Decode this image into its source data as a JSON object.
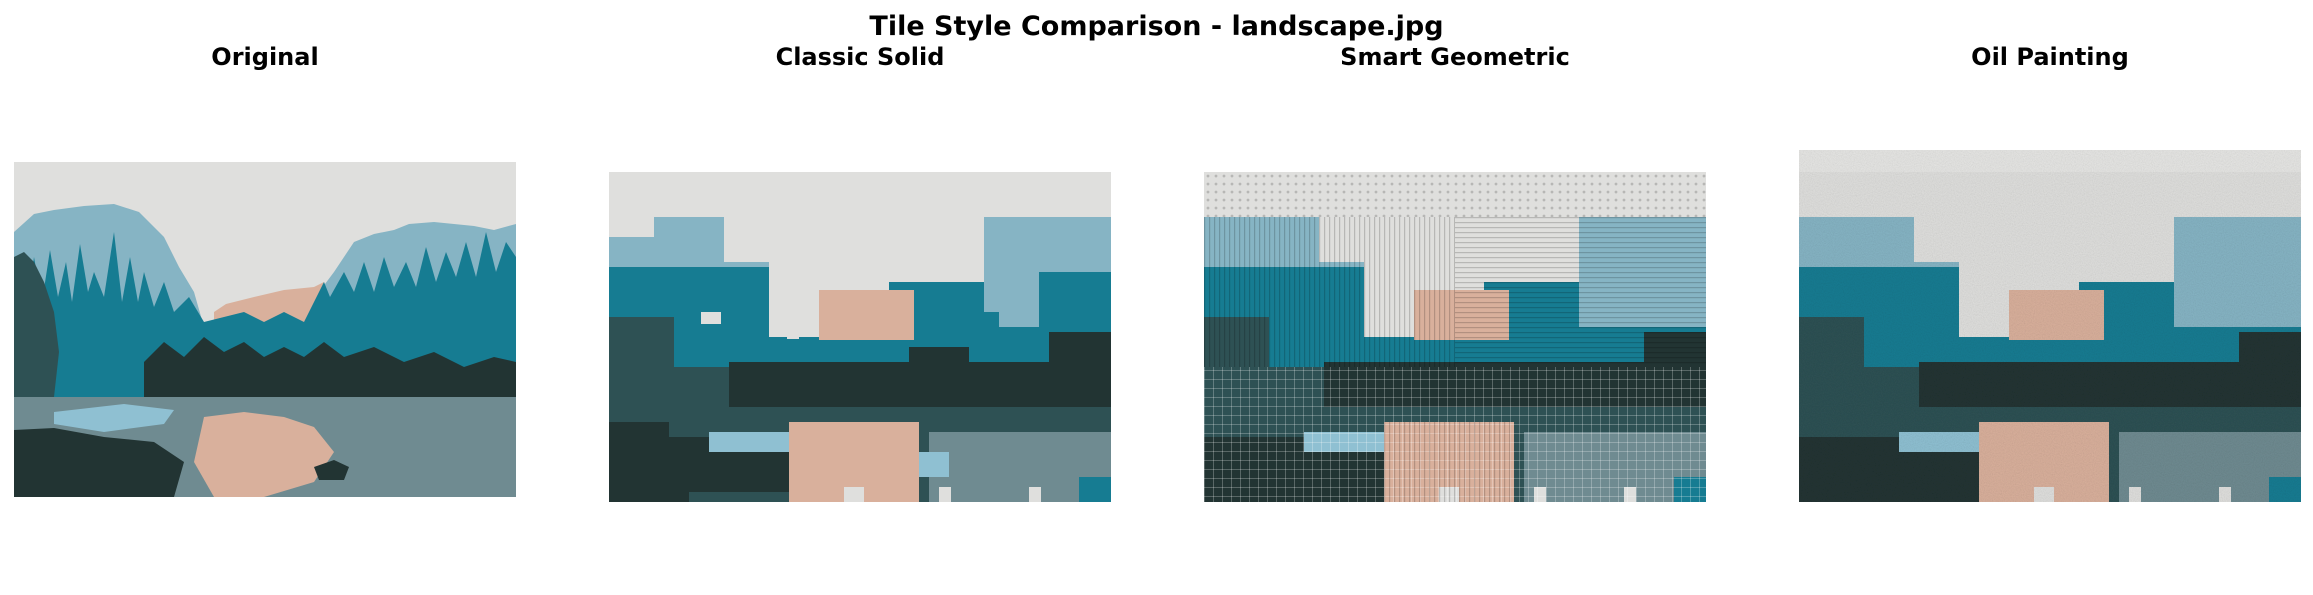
{
  "figure": {
    "title": "Tile Style Comparison - landscape.jpg"
  },
  "panels": [
    {
      "title": "Original",
      "kind": "original"
    },
    {
      "title": "Classic Solid",
      "kind": "classic-solid"
    },
    {
      "title": "Smart Geometric",
      "kind": "smart-geometric"
    },
    {
      "title": "Oil Painting",
      "kind": "oil-painting"
    }
  ],
  "palette": {
    "sky": "#dfdfdd",
    "far_mountain": "#86b4c4",
    "peach": "#d9b09c",
    "teal": "#167c92",
    "dark_green": "#223433",
    "slate": "#2e5154",
    "grey_blue": "#6f8b91",
    "light_blue": "#8fc0d2"
  }
}
